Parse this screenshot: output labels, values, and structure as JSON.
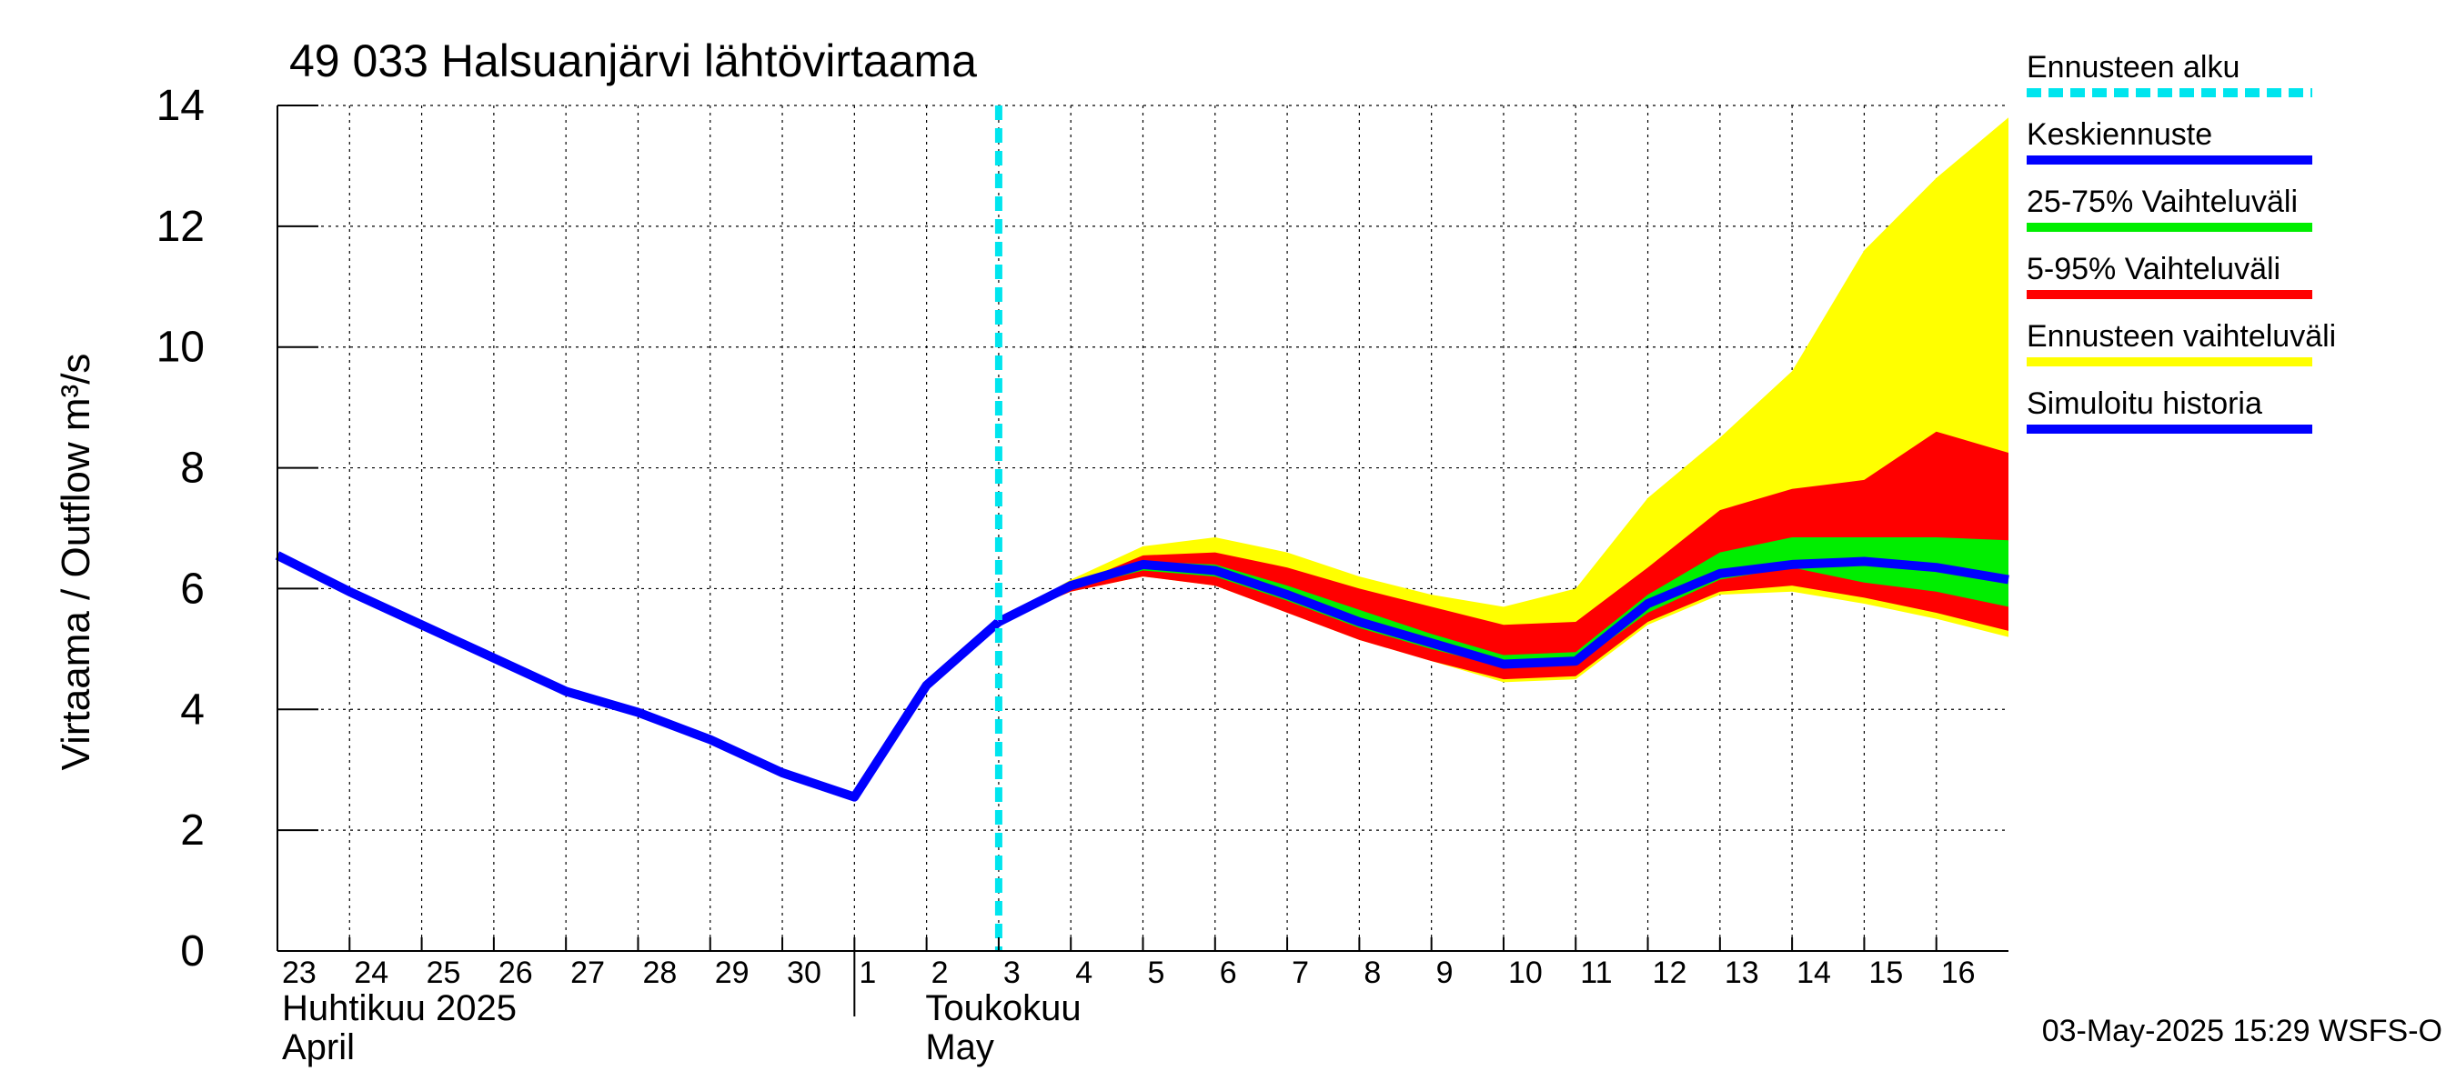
{
  "chart_data": {
    "type": "area",
    "title": "49 033 Halsuanjärvi lähtövirtaama",
    "ylabel": "Virtaama / Outflow    m³/s",
    "ylim": [
      0,
      14
    ],
    "yticks": [
      "0",
      "2",
      "4",
      "6",
      "8",
      "10",
      "12",
      "14"
    ],
    "x_range": [
      23,
      47
    ],
    "x_ticks": [
      {
        "pos": 23,
        "label": "23"
      },
      {
        "pos": 24,
        "label": "24"
      },
      {
        "pos": 25,
        "label": "25"
      },
      {
        "pos": 26,
        "label": "26"
      },
      {
        "pos": 27,
        "label": "27"
      },
      {
        "pos": 28,
        "label": "28"
      },
      {
        "pos": 29,
        "label": "29"
      },
      {
        "pos": 30,
        "label": "30"
      },
      {
        "pos": 31,
        "label": "1"
      },
      {
        "pos": 32,
        "label": "2"
      },
      {
        "pos": 33,
        "label": "3"
      },
      {
        "pos": 34,
        "label": "4"
      },
      {
        "pos": 35,
        "label": "5"
      },
      {
        "pos": 36,
        "label": "6"
      },
      {
        "pos": 37,
        "label": "7"
      },
      {
        "pos": 38,
        "label": "8"
      },
      {
        "pos": 39,
        "label": "9"
      },
      {
        "pos": 40,
        "label": "10"
      },
      {
        "pos": 41,
        "label": "11"
      },
      {
        "pos": 42,
        "label": "12"
      },
      {
        "pos": 43,
        "label": "13"
      },
      {
        "pos": 44,
        "label": "14"
      },
      {
        "pos": 45,
        "label": "15"
      },
      {
        "pos": 46,
        "label": "16"
      }
    ],
    "month_labels": [
      {
        "fi": "Huhtikuu  2025",
        "en": "April"
      },
      {
        "fi": "Toukokuu",
        "en": "May"
      }
    ],
    "forecast_start": 33,
    "history": {
      "x": [
        23,
        24,
        25,
        26,
        27,
        28,
        29,
        30,
        31,
        32,
        33
      ],
      "y": [
        6.55,
        5.95,
        5.4,
        4.85,
        4.3,
        3.95,
        3.5,
        2.95,
        2.55,
        4.4,
        5.45
      ]
    },
    "forecast_x": [
      33,
      34,
      35,
      36,
      37,
      38,
      39,
      40,
      41,
      42,
      43,
      44,
      45,
      46,
      47
    ],
    "bands": {
      "range_low": [
        5.45,
        5.95,
        6.2,
        6.05,
        5.6,
        5.15,
        4.8,
        4.45,
        4.5,
        5.4,
        5.9,
        5.95,
        5.75,
        5.5,
        5.2
      ],
      "range_high": [
        5.45,
        6.15,
        6.7,
        6.85,
        6.6,
        6.2,
        5.9,
        5.7,
        6.0,
        7.5,
        8.5,
        9.6,
        11.6,
        12.8,
        13.8
      ],
      "p5": [
        5.45,
        5.95,
        6.2,
        6.05,
        5.6,
        5.15,
        4.8,
        4.5,
        4.55,
        5.45,
        5.95,
        6.05,
        5.85,
        5.6,
        5.3
      ],
      "p95": [
        5.45,
        6.05,
        6.55,
        6.6,
        6.35,
        6.0,
        5.7,
        5.4,
        5.45,
        6.35,
        7.3,
        7.65,
        7.8,
        8.6,
        8.25
      ],
      "p25": [
        5.45,
        6.0,
        6.3,
        6.2,
        5.8,
        5.35,
        5.0,
        4.7,
        4.75,
        5.6,
        6.15,
        6.35,
        6.1,
        5.95,
        5.7
      ],
      "p75": [
        5.45,
        6.1,
        6.45,
        6.4,
        6.05,
        5.65,
        5.25,
        4.9,
        4.95,
        5.9,
        6.6,
        6.85,
        6.85,
        6.85,
        6.8
      ]
    },
    "median": [
      5.45,
      6.05,
      6.4,
      6.3,
      5.9,
      5.45,
      5.1,
      4.75,
      4.8,
      5.75,
      6.25,
      6.4,
      6.45,
      6.35,
      6.15
    ],
    "legend": [
      {
        "label": "Ennusteen alku",
        "color": "#00e5ee",
        "style": "dashed"
      },
      {
        "label": "Keskiennuste",
        "color": "#0000ff",
        "style": "solid"
      },
      {
        "label": "25-75% Vaihteluväli",
        "color": "#00ee00",
        "style": "solid"
      },
      {
        "label": "5-95% Vaihteluväli",
        "color": "#ff0000",
        "style": "solid"
      },
      {
        "label": "Ennusteen vaihteluväli",
        "color": "#ffff00",
        "style": "solid"
      },
      {
        "label": "Simuloitu historia",
        "color": "#0000ff",
        "style": "solid"
      }
    ],
    "colors": {
      "range": "#ffff00",
      "p5_95": "#ff0000",
      "p25_75": "#00ee00",
      "median": "#0000ff",
      "history": "#0000ff",
      "forecast_start": "#00e5ee",
      "grid": "#000000"
    },
    "footer": "03-May-2025 15:29 WSFS-O"
  }
}
